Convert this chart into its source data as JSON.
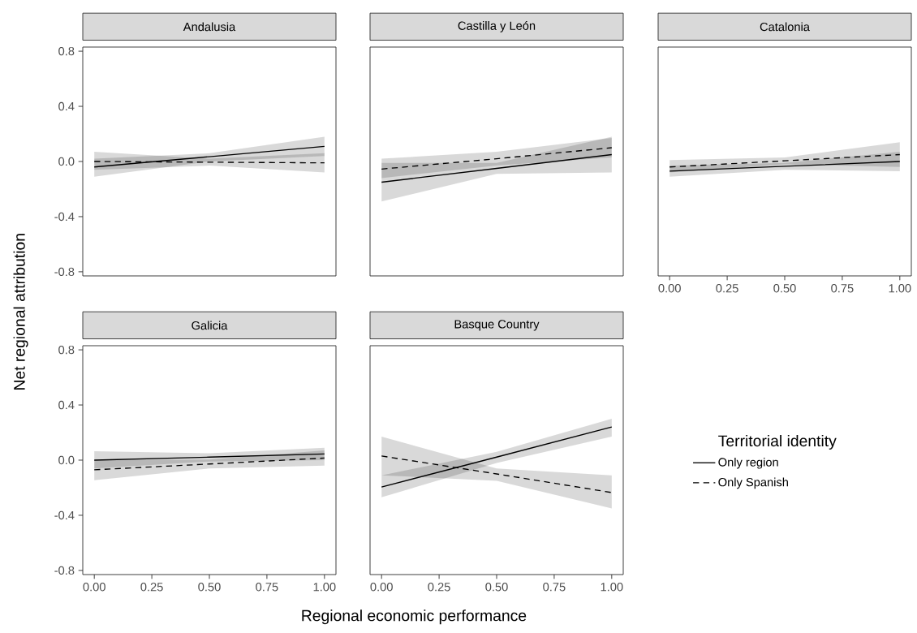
{
  "chart_data": [
    {
      "type": "line",
      "title": "Andalusia",
      "x": [
        0,
        0.5,
        1
      ],
      "xlim": [
        -0.05,
        1.05
      ],
      "ylim": [
        -0.83,
        0.83
      ],
      "tick_labels": "y",
      "yticks": [
        {
          "value": -0.8,
          "label": "-0.8"
        },
        {
          "value": -0.4,
          "label": "-0.4"
        },
        {
          "value": 0,
          "label": "0.0"
        },
        {
          "value": 0.4,
          "label": "0.4"
        },
        {
          "value": 0.8,
          "label": "0.8"
        }
      ],
      "series": [
        {
          "color": "#000000",
          "line_style": "solid",
          "values": [
            -0.04,
            0.035,
            0.11
          ],
          "lower": [
            -0.11,
            0.0,
            0.04
          ],
          "upper": [
            0.02,
            0.06,
            0.18
          ]
        },
        {
          "color": "#000000",
          "line_style": "dashed",
          "values": [
            0.0,
            -0.005,
            -0.01
          ],
          "lower": [
            -0.06,
            -0.03,
            -0.08
          ],
          "upper": [
            0.07,
            0.02,
            0.06
          ]
        }
      ]
    },
    {
      "type": "line",
      "title": "Castilla y León",
      "x": [
        0,
        0.5,
        1
      ],
      "xlim": [
        -0.05,
        1.05
      ],
      "ylim": [
        -0.83,
        0.83
      ],
      "tick_labels": false,
      "series": [
        {
          "color": "#000000",
          "line_style": "solid",
          "values": [
            -0.15,
            -0.05,
            0.05
          ],
          "lower": [
            -0.29,
            -0.09,
            -0.08
          ],
          "upper": [
            -0.01,
            -0.01,
            0.18
          ]
        },
        {
          "color": "#000000",
          "line_style": "dashed",
          "values": [
            -0.055,
            0.02,
            0.1
          ],
          "lower": [
            -0.12,
            -0.03,
            0.03
          ],
          "upper": [
            0.02,
            0.07,
            0.17
          ]
        }
      ]
    },
    {
      "type": "line",
      "title": "Catalonia",
      "x": [
        0,
        0.5,
        1
      ],
      "xlim": [
        -0.05,
        1.05
      ],
      "ylim": [
        -0.83,
        0.83
      ],
      "tick_labels": "x",
      "xticks": [
        {
          "value": 0,
          "label": "0.00"
        },
        {
          "value": 0.25,
          "label": "0.25"
        },
        {
          "value": 0.5,
          "label": "0.50"
        },
        {
          "value": 0.75,
          "label": "0.75"
        },
        {
          "value": 1,
          "label": "1.00"
        }
      ],
      "series": [
        {
          "color": "#000000",
          "line_style": "solid",
          "values": [
            -0.07,
            -0.035,
            0.0
          ],
          "lower": [
            -0.11,
            -0.06,
            -0.07
          ],
          "upper": [
            -0.03,
            -0.01,
            0.07
          ]
        },
        {
          "color": "#000000",
          "line_style": "dashed",
          "values": [
            -0.04,
            0.005,
            0.05
          ],
          "lower": [
            -0.08,
            -0.02,
            -0.04
          ],
          "upper": [
            0.01,
            0.03,
            0.14
          ]
        }
      ]
    },
    {
      "type": "line",
      "title": "Galicia",
      "ylabel": "Net regional attribution",
      "x": [
        0,
        0.5,
        1
      ],
      "xlim": [
        -0.05,
        1.05
      ],
      "ylim": [
        -0.83,
        0.83
      ],
      "xticks": [
        {
          "value": 0,
          "label": "0.00"
        },
        {
          "value": 0.25,
          "label": "0.25"
        },
        {
          "value": 0.5,
          "label": "0.50"
        },
        {
          "value": 0.75,
          "label": "0.75"
        },
        {
          "value": 1,
          "label": "1.00"
        }
      ],
      "yticks": [
        {
          "value": -0.8,
          "label": "-0.8"
        },
        {
          "value": -0.4,
          "label": "-0.4"
        },
        {
          "value": 0,
          "label": "0.0"
        },
        {
          "value": 0.4,
          "label": "0.4"
        },
        {
          "value": 0.8,
          "label": "0.8"
        }
      ],
      "series": [
        {
          "color": "#000000",
          "line_style": "solid",
          "values": [
            0.0,
            0.022,
            0.045
          ],
          "lower": [
            -0.06,
            -0.01,
            0.0
          ],
          "upper": [
            0.065,
            0.05,
            0.09
          ]
        },
        {
          "color": "#000000",
          "line_style": "dashed",
          "values": [
            -0.07,
            -0.028,
            0.015
          ],
          "lower": [
            -0.145,
            -0.06,
            -0.04
          ],
          "upper": [
            0.0,
            0.005,
            0.07
          ]
        }
      ]
    },
    {
      "type": "line",
      "title": "Basque Country",
      "xlabel": "Regional economic performance",
      "legend_title": "Territorial identity",
      "legend": "right",
      "x": [
        0,
        0.5,
        1
      ],
      "xlim": [
        -0.05,
        1.05
      ],
      "ylim": [
        -0.83,
        0.83
      ],
      "tick_labels": "x",
      "xticks": [
        {
          "value": 0,
          "label": "0.00"
        },
        {
          "value": 0.25,
          "label": "0.25"
        },
        {
          "value": 0.5,
          "label": "0.50"
        },
        {
          "value": 0.75,
          "label": "0.75"
        },
        {
          "value": 1,
          "label": "1.00"
        }
      ],
      "series": [
        {
          "name": "Only region",
          "color": "#000000",
          "line_style": "solid",
          "values": [
            -0.195,
            0.022,
            0.24
          ],
          "lower": [
            -0.27,
            -0.02,
            0.17
          ],
          "upper": [
            -0.11,
            0.06,
            0.3
          ]
        },
        {
          "name": "Only Spanish",
          "color": "#000000",
          "line_style": "dashed",
          "values": [
            0.03,
            -0.1,
            -0.235
          ],
          "lower": [
            -0.11,
            -0.15,
            -0.35
          ],
          "upper": [
            0.17,
            -0.06,
            -0.11
          ]
        }
      ]
    }
  ]
}
